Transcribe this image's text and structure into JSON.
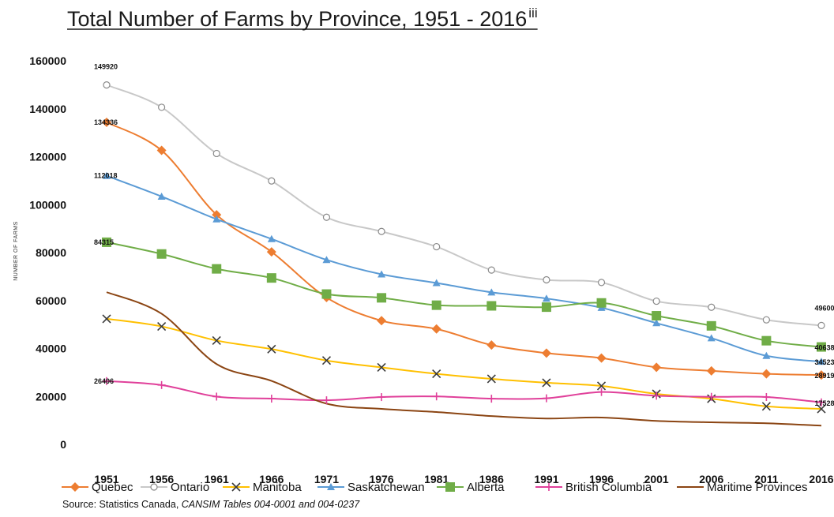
{
  "chart_data": {
    "type": "line",
    "title": "Total Number of Farms by Province, 1951 - 2016",
    "title_superscript": "iii",
    "ylabel": "NUMBER OF FARMS",
    "ylim": [
      0,
      160000
    ],
    "yticks": [
      0,
      20000,
      40000,
      60000,
      80000,
      100000,
      120000,
      140000,
      160000
    ],
    "ytick_labels": [
      "0",
      "20000",
      "40000",
      "60000",
      "80000",
      "100000",
      "120000",
      "140000",
      "160000"
    ],
    "x": [
      "1951",
      "1956",
      "1961",
      "1966",
      "1971",
      "1976",
      "1981",
      "1986",
      "1991",
      "1996",
      "2001",
      "2006",
      "2011",
      "2016"
    ],
    "grid": false,
    "legend_position": "bottom",
    "series": [
      {
        "name": "Quebec",
        "color": "#ed7d31",
        "marker": "diamond",
        "values": [
          134336,
          122617,
          95777,
          80294,
          61257,
          51587,
          48144,
          41448,
          38076,
          35991,
          32139,
          30675,
          29437,
          28919
        ]
      },
      {
        "name": "Ontario",
        "color": "#c8c8c8",
        "marker": "circle",
        "dashed": true,
        "values": [
          149920,
          140602,
          121333,
          109887,
          94722,
          88801,
          82448,
          72713,
          68633,
          67520,
          59728,
          57211,
          51950,
          49600
        ]
      },
      {
        "name": "Manitoba",
        "color": "#ffc000",
        "marker": "x",
        "dashed": true,
        "values": [
          52383,
          49201,
          43306,
          39747,
          34981,
          32104,
          29442,
          27336,
          25706,
          24383,
          21071,
          19054,
          15877,
          14791
        ]
      },
      {
        "name": "Saskatchewan",
        "color": "#5b9bd5",
        "marker": "triangle",
        "values": [
          112018,
          103391,
          93924,
          85686,
          76970,
          70958,
          67318,
          63431,
          60840,
          56995,
          50598,
          44329,
          36952,
          34523
        ]
      },
      {
        "name": "Alberta",
        "color": "#70ad47",
        "marker": "square",
        "values": [
          84315,
          79424,
          73212,
          69411,
          62702,
          61130,
          58056,
          57777,
          57245,
          59007,
          53652,
          49431,
          43234,
          40638
        ]
      },
      {
        "name": "British Columbia",
        "color": "#e0409a",
        "marker": "plus",
        "values": [
          26406,
          24748,
          19934,
          19085,
          18400,
          19733,
          20012,
          19063,
          19225,
          21835,
          20290,
          19844,
          19759,
          17528
        ]
      },
      {
        "name": "Maritime Provinces",
        "color": "#8b4513",
        "marker": "none",
        "values": [
          63500,
          54500,
          33500,
          26500,
          17000,
          14800,
          13500,
          11800,
          10800,
          11200,
          9800,
          9200,
          8800,
          7800
        ]
      }
    ],
    "data_labels": [
      {
        "series": "Ontario",
        "index": 0,
        "text": "149920"
      },
      {
        "series": "Quebec",
        "index": 0,
        "text": "134336"
      },
      {
        "series": "Saskatchewan",
        "index": 0,
        "text": "112018"
      },
      {
        "series": "Alberta",
        "index": 0,
        "text": "84315"
      },
      {
        "series": "British Columbia",
        "index": 0,
        "text": "26406"
      },
      {
        "series": "Ontario",
        "index": 13,
        "text": "49600"
      },
      {
        "series": "Alberta",
        "index": 13,
        "text": "40638"
      },
      {
        "series": "Saskatchewan",
        "index": 13,
        "text": "34523"
      },
      {
        "series": "Quebec",
        "index": 13,
        "text": "28919"
      },
      {
        "series": "British Columbia",
        "index": 13,
        "text": "17528"
      }
    ]
  },
  "source": {
    "prefix": "Source: Statistics Canada, ",
    "tables": "CANSIM Tables 004-0001 and 004-0237"
  }
}
